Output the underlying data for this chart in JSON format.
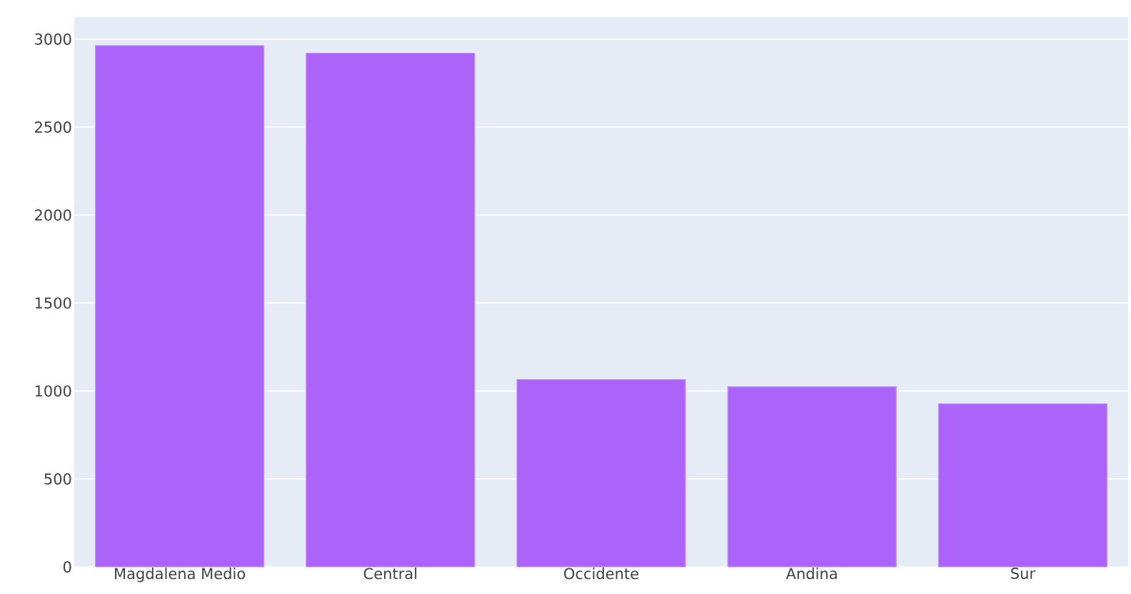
{
  "chart_data": {
    "type": "bar",
    "categories": [
      "Magdalena Medio",
      "Central",
      "Occidente",
      "Andina",
      "Sur"
    ],
    "values": [
      2963,
      2920,
      1065,
      1024,
      927
    ],
    "color": "#ab63fa",
    "ylim": [
      0,
      3125
    ],
    "yticks": [
      0,
      500,
      1000,
      1500,
      2000,
      2500,
      3000
    ],
    "grid": "y"
  }
}
